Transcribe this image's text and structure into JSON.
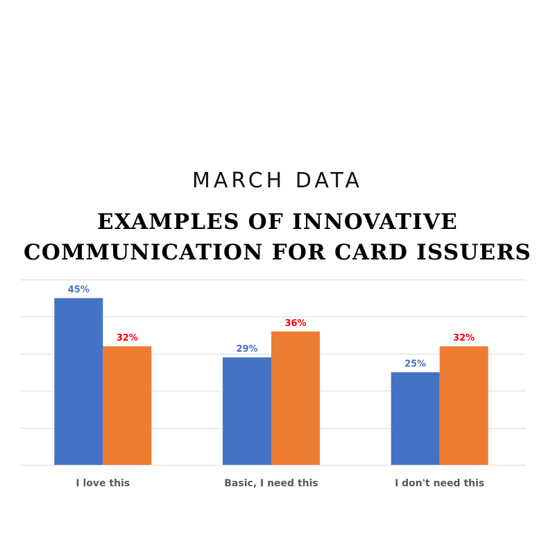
{
  "brand": "MARCH DATA",
  "title_lines": [
    "EXAMPLES OF INNOVATIVE",
    "COMMUNICATION FOR CARD ISSUERS"
  ],
  "chart_data": {
    "type": "bar",
    "categories": [
      "I love this",
      "Basic, I need this",
      "I don't need this"
    ],
    "series": [
      {
        "values": [
          45,
          29,
          25
        ],
        "color": "#4472C4",
        "label_color": "#4472C4"
      },
      {
        "values": [
          32,
          36,
          32
        ],
        "color": "#ED7D31",
        "label_color": "#FF0000"
      }
    ],
    "value_suffix": "%",
    "ylim": [
      0,
      50
    ],
    "grid": true,
    "legend": "none"
  }
}
